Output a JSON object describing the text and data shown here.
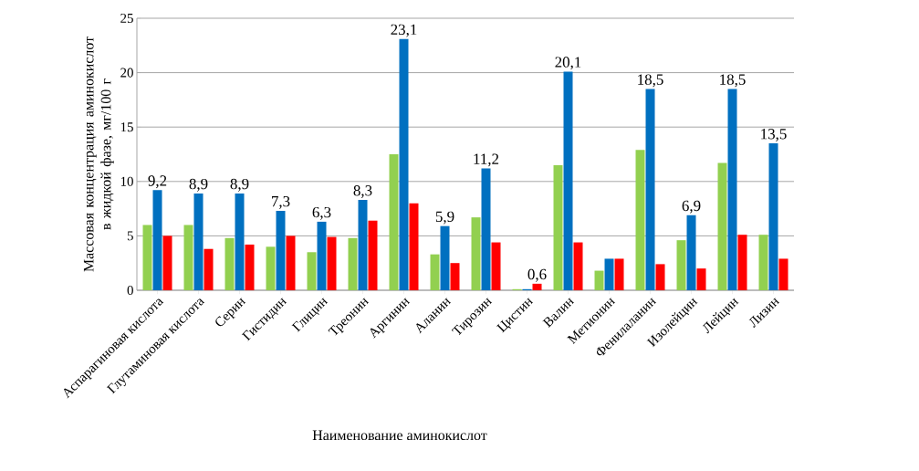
{
  "chart_data": {
    "type": "bar",
    "xlabel": "Наименование аминокислот",
    "ylabel": "Массовая концентрация аминокислот в жидкой фазе, мг/100 г",
    "categories": [
      "Аспарагиновая кислота",
      "Глутаминовая кислота",
      "Серин",
      "Гистидин",
      "Глицин",
      "Треонин",
      "Аргинин",
      "Аланин",
      "Тирозин",
      "Цистин",
      "Валин",
      "Метионин",
      "Фенилаланин",
      "Изолейцин",
      "Лейцин",
      "Лизин"
    ],
    "series": [
      {
        "color": "#92d050",
        "values": [
          6.0,
          6.0,
          4.8,
          4.0,
          3.5,
          4.8,
          12.5,
          3.3,
          6.7,
          0.1,
          11.5,
          1.8,
          12.9,
          4.6,
          11.7,
          5.1
        ]
      },
      {
        "color": "#0070c0",
        "values": [
          9.2,
          8.9,
          8.9,
          7.3,
          6.3,
          8.3,
          23.1,
          5.9,
          11.2,
          0.1,
          20.1,
          2.9,
          18.5,
          6.9,
          18.5,
          13.5
        ],
        "value_labels": [
          "9,2",
          "8,9",
          "8,9",
          "7,3",
          "6,3",
          "8,3",
          "23,1",
          "5,9",
          "11,2",
          null,
          "20,1",
          null,
          "18,5",
          "6,9",
          "18,5",
          "13,5"
        ]
      },
      {
        "color": "#ff0000",
        "values": [
          5.0,
          3.8,
          4.2,
          5.0,
          4.9,
          6.4,
          8.0,
          2.5,
          4.4,
          0.6,
          4.4,
          2.9,
          2.4,
          2.0,
          5.1,
          2.9
        ],
        "value_labels": [
          null,
          null,
          null,
          null,
          null,
          null,
          null,
          null,
          null,
          "0,6",
          null,
          null,
          null,
          null,
          null,
          null
        ]
      }
    ],
    "ylim": [
      0,
      25
    ],
    "yticks": [
      0,
      5,
      10,
      15,
      20,
      25
    ],
    "grid": "y"
  }
}
